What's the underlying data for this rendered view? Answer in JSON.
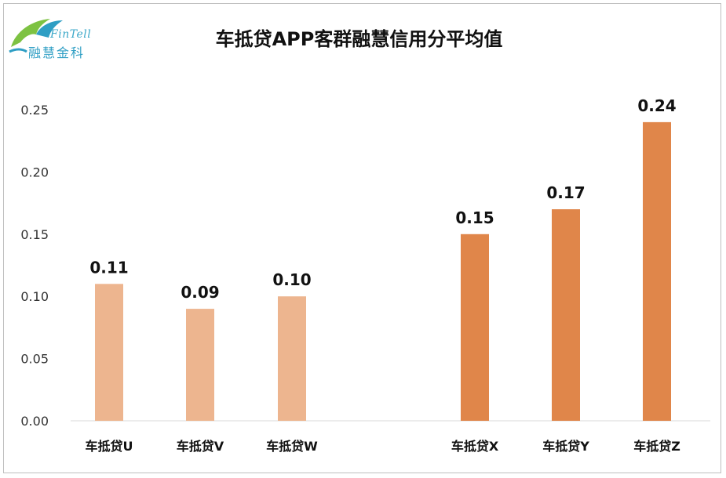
{
  "logo": {
    "en": "FinTell",
    "cn": "融慧金科"
  },
  "chart_data": {
    "type": "bar",
    "title": "车抵贷APP客群融慧信用分平均值",
    "categories": [
      "车抵贷U",
      "车抵贷V",
      "车抵贷W",
      "车抵贷X",
      "车抵贷Y",
      "车抵贷Z"
    ],
    "values": [
      0.11,
      0.09,
      0.1,
      0.15,
      0.17,
      0.24
    ],
    "data_labels": [
      "0.11",
      "0.09",
      "0.10",
      "0.15",
      "0.17",
      "0.24"
    ],
    "ylim": [
      0,
      0.25
    ],
    "yticks": [
      "0.00",
      "0.05",
      "0.10",
      "0.15",
      "0.20",
      "0.25"
    ],
    "grid": false,
    "colors": {
      "group1": "#EDB58F",
      "group2": "#E0864A"
    },
    "bar_groups": [
      "group1",
      "group1",
      "group1",
      "group2",
      "group2",
      "group2"
    ]
  }
}
